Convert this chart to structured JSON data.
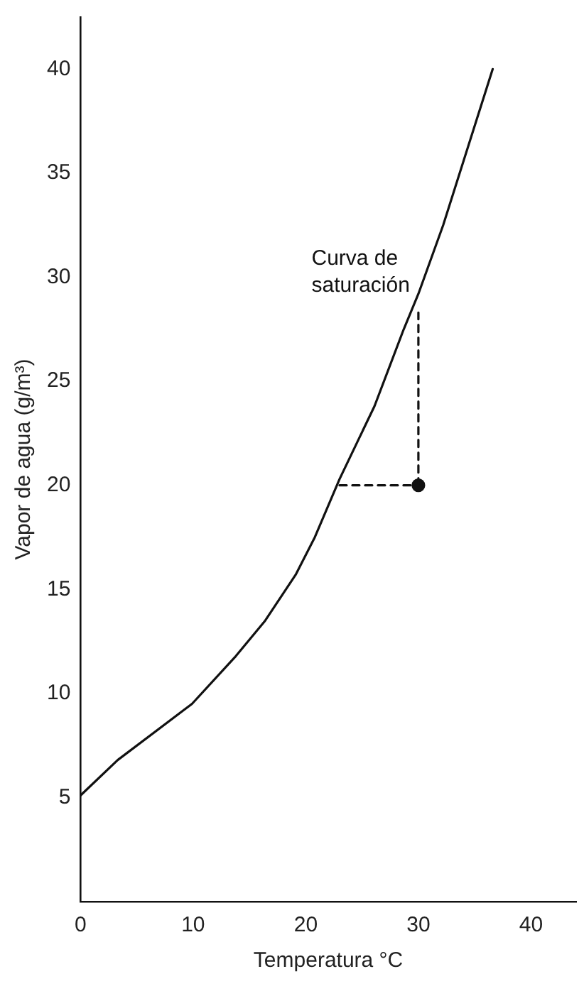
{
  "chart_data": {
    "type": "line",
    "xlabel": "Temperatura °C",
    "ylabel": "Vapor de agua (g/m³)",
    "xlim": [
      0,
      44
    ],
    "xticks": [
      0,
      10,
      20,
      30,
      40
    ],
    "ylim": [
      0,
      42.5
    ],
    "yticks": [
      5,
      10,
      15,
      20,
      25,
      30,
      35,
      40
    ],
    "grid": false,
    "legend": false,
    "annotations": [
      {
        "text": "Curva de saturación",
        "x": 30,
        "y": 29.2
      }
    ],
    "series": [
      {
        "type": "line",
        "color": "#111111",
        "marker": "none",
        "line_style": "solid",
        "x": [
          0,
          3.3,
          9.9,
          13.8,
          16.4,
          19.1,
          20.8,
          23,
          26.1,
          28.7,
          30,
          32.2,
          36.6
        ],
        "values": [
          5.1,
          6.8,
          9.5,
          11.8,
          13.5,
          15.7,
          17.5,
          20.3,
          23.8,
          27.5,
          29.2,
          32.5,
          40
        ]
      },
      {
        "type": "line",
        "color": "#111111",
        "marker": "none",
        "line_style": "dashed",
        "x": [
          23,
          30
        ],
        "values": [
          20,
          20
        ]
      },
      {
        "type": "line",
        "color": "#111111",
        "marker": "none",
        "line_style": "dashed",
        "x": [
          30,
          30
        ],
        "values": [
          20,
          28.3
        ]
      },
      {
        "type": "scatter",
        "color": "#111111",
        "marker": "circle",
        "x": [
          30
        ],
        "values": [
          20
        ]
      }
    ]
  }
}
